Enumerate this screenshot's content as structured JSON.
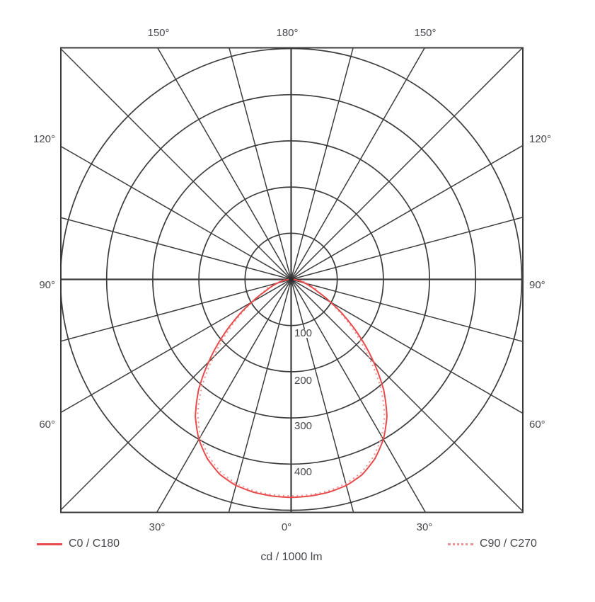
{
  "chart_data": {
    "type": "polar-photometric",
    "title": "",
    "units_label": "cd / 1000 lm",
    "angle_step_deg": 15,
    "angle_labels": {
      "top": [
        "150°",
        "180°",
        "150°"
      ],
      "left": [
        "120°",
        "90°",
        "60°"
      ],
      "right": [
        "120°",
        "90°",
        "60°"
      ],
      "bottom": [
        "30°",
        "0°",
        "30°"
      ]
    },
    "ring_values": [
      100,
      200,
      300,
      400,
      500
    ],
    "ring_labels": [
      "100",
      "200",
      "300",
      "400"
    ],
    "r_axis_max": 500,
    "grid": "on",
    "legend_position": "bottom",
    "gamma_deg": [
      0,
      5,
      10,
      15,
      20,
      25,
      30,
      35,
      40,
      45,
      50,
      55,
      60,
      65,
      70,
      75,
      80,
      85,
      90
    ],
    "series": [
      {
        "name": "C0 / C180",
        "style": "solid",
        "color": "#e84b4b",
        "values": [
          472,
          471,
          468,
          462,
          450,
          429,
          400,
          362,
          312,
          253,
          196,
          144,
          98,
          64,
          45,
          30,
          18,
          9,
          3
        ]
      },
      {
        "name": "C90 / C270",
        "style": "dotted",
        "color": "#f09090",
        "values": [
          469,
          468,
          465,
          458,
          445,
          423,
          393,
          353,
          300,
          238,
          184,
          136,
          95,
          66,
          55,
          38,
          24,
          12,
          4
        ]
      }
    ],
    "grid_color": "#3c3c3c"
  },
  "legend": {
    "c0_label": "C0 / C180",
    "c90_label": "C90 / C270"
  },
  "caption": "cd / 1000 lm"
}
